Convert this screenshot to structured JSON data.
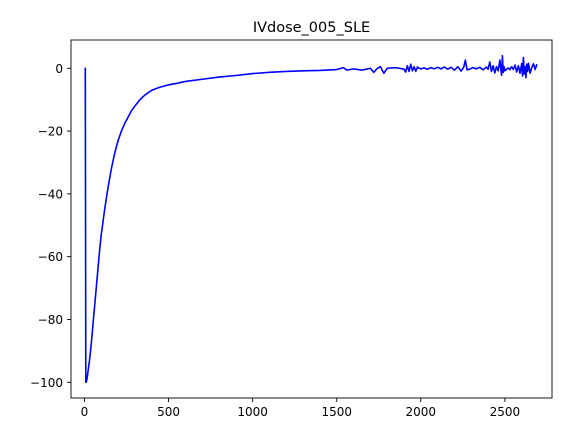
{
  "chart_data": {
    "type": "line",
    "title": "IVdose_005_SLE",
    "xlabel": "",
    "ylabel": "",
    "xlim": [
      -80,
      2780
    ],
    "ylim": [
      -105,
      9
    ],
    "grid": false,
    "colors": {
      "line": "#0000ff",
      "axes": "#000000",
      "background": "#ffffff"
    },
    "x_ticks": [
      {
        "value": 0,
        "label": "0"
      },
      {
        "value": 500,
        "label": "500"
      },
      {
        "value": 1000,
        "label": "1000"
      },
      {
        "value": 1500,
        "label": "1500"
      },
      {
        "value": 2000,
        "label": "2000"
      },
      {
        "value": 2500,
        "label": "2500"
      }
    ],
    "y_ticks": [
      {
        "value": 0,
        "label": "0"
      },
      {
        "value": -20,
        "label": "−20"
      },
      {
        "value": -40,
        "label": "−40"
      },
      {
        "value": -60,
        "label": "−60"
      },
      {
        "value": -80,
        "label": "−80"
      },
      {
        "value": -100,
        "label": "−100"
      }
    ],
    "series": [
      {
        "x": [
          0,
          5,
          8,
          10,
          15,
          20,
          30,
          40,
          50,
          60,
          70,
          80,
          90,
          100,
          120,
          140,
          160,
          180,
          200,
          220,
          240,
          260,
          280,
          300,
          330,
          360,
          400,
          450,
          500,
          550,
          600,
          700,
          800,
          900,
          1000,
          1100,
          1200,
          1300,
          1400,
          1500,
          1540,
          1560,
          1600,
          1650,
          1700,
          1720,
          1740,
          1760,
          1780,
          1800,
          1850,
          1900,
          1910,
          1920,
          1930,
          1940,
          1950,
          1960,
          1970,
          1980,
          1990,
          2000,
          2020,
          2040,
          2060,
          2080,
          2100,
          2120,
          2140,
          2160,
          2180,
          2200,
          2220,
          2240,
          2255,
          2265,
          2275,
          2290,
          2310,
          2330,
          2350,
          2370,
          2390,
          2400,
          2410,
          2420,
          2430,
          2440,
          2450,
          2460,
          2470,
          2480,
          2485,
          2490,
          2495,
          2500,
          2510,
          2520,
          2530,
          2540,
          2550,
          2560,
          2570,
          2580,
          2590,
          2600,
          2605,
          2610,
          2615,
          2620,
          2625,
          2630,
          2635,
          2640,
          2650,
          2660,
          2670,
          2680,
          2690
        ],
        "y": [
          0,
          0,
          -100,
          -100,
          -99,
          -97,
          -93,
          -88,
          -82,
          -76,
          -70,
          -64,
          -58,
          -53,
          -45,
          -38,
          -32,
          -27,
          -23,
          -20,
          -17.5,
          -15.5,
          -13.5,
          -12,
          -10,
          -8.5,
          -7,
          -6,
          -5.3,
          -4.8,
          -4.2,
          -3.5,
          -2.8,
          -2.3,
          -1.7,
          -1.3,
          -1,
          -0.8,
          -0.7,
          -0.4,
          0.2,
          -0.6,
          -0.2,
          -0.6,
          0,
          -1.3,
          -0.1,
          0.5,
          -1.6,
          0,
          0.2,
          -0.3,
          -1.2,
          0.8,
          -1,
          1.3,
          -0.8,
          0.5,
          -1,
          0.4,
          0,
          -0.2,
          0.1,
          -0.3,
          0.2,
          -0.2,
          0.3,
          -0.2,
          0.4,
          -0.3,
          0.3,
          -0.6,
          0.5,
          -0.9,
          0.3,
          2.6,
          -0.5,
          -0.3,
          0.2,
          -0.2,
          0.3,
          -0.5,
          0.4,
          -0.3,
          2,
          -1,
          0.8,
          -1.5,
          0.5,
          -0.8,
          2.6,
          -2.2,
          4,
          -1.3,
          0.5,
          -0.8,
          -0.3,
          0.1,
          -0.4,
          0.5,
          -0.4,
          1,
          -1.2,
          0.8,
          -1.6,
          1.5,
          -2.5,
          3.4,
          -1.8,
          0.5,
          -3,
          1.3,
          -1,
          1.6,
          -1.6,
          0.3,
          1.4,
          -0.4,
          1.3
        ]
      }
    ]
  }
}
